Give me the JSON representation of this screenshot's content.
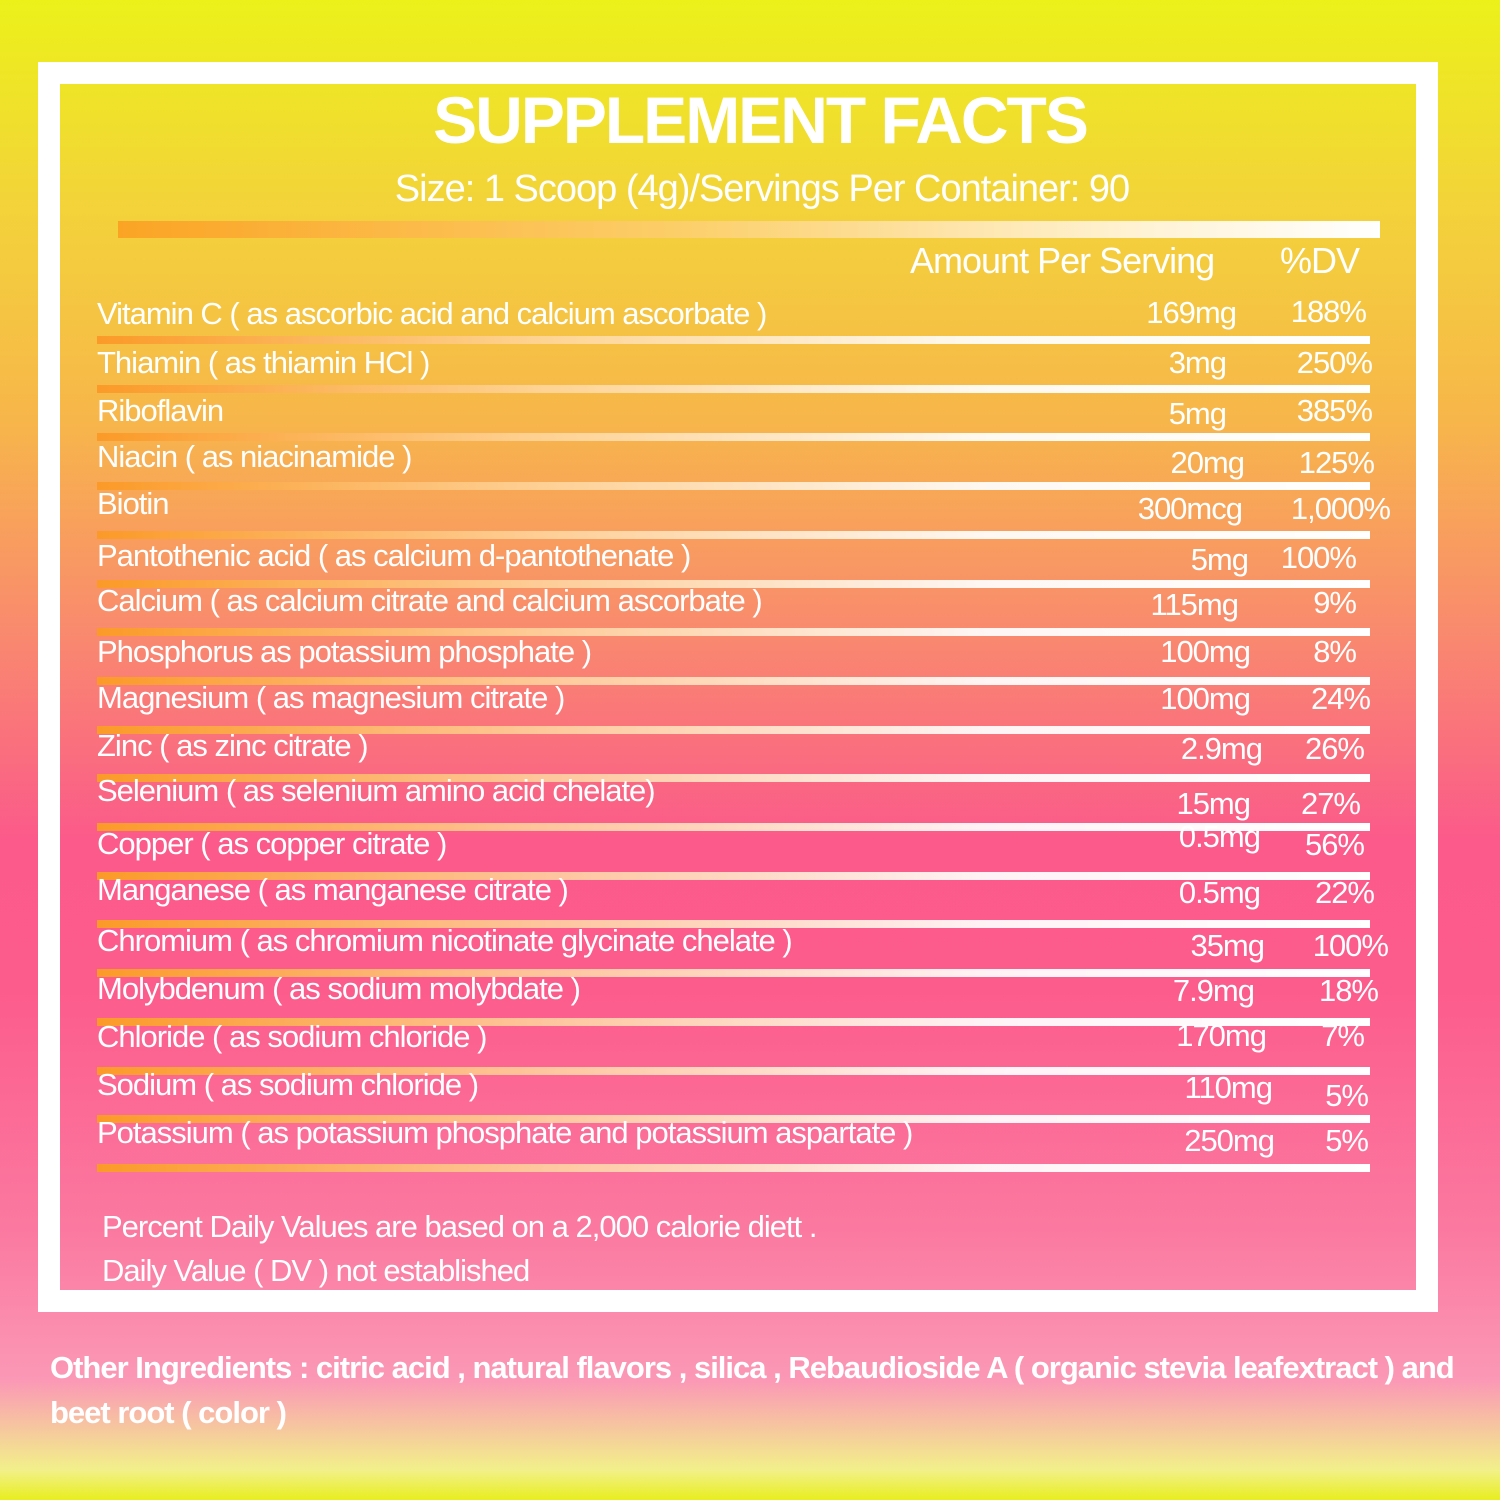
{
  "title": "SUPPLEMENT FACTS",
  "serving_size": "Size: 1 Scoop (4g)/Servings Per Container: 90",
  "column_headers": {
    "amount": "Amount Per Serving",
    "dv": "%DV"
  },
  "nutrients": [
    {
      "name": "Vitamin C ( as ascorbic acid and calcium ascorbate )",
      "amount": "169mg",
      "dv": "188%"
    },
    {
      "name": "Thiamin ( as thiamin HCl )",
      "amount": "3mg",
      "dv": "250%"
    },
    {
      "name": "Riboflavin",
      "amount": "5mg",
      "dv": "385%"
    },
    {
      "name": "Niacin ( as niacinamide )",
      "amount": "20mg",
      "dv": "125%"
    },
    {
      "name": "Biotin",
      "amount": "300mcg",
      "dv": "1,000%"
    },
    {
      "name": "Pantothenic acid ( as calcium d-pantothenate )",
      "amount": "5mg",
      "dv": "100%"
    },
    {
      "name": "Calcium ( as calcium citrate and calcium ascorbate )",
      "amount": "115mg",
      "dv": "9%"
    },
    {
      "name": "Phosphorus as potassium phosphate )",
      "amount": "100mg",
      "dv": "8%"
    },
    {
      "name": "Magnesium ( as magnesium citrate )",
      "amount": "100mg",
      "dv": "24%"
    },
    {
      "name": "Zinc ( as zinc citrate )",
      "amount": "2.9mg",
      "dv": "26%"
    },
    {
      "name": "Selenium ( as selenium amino acid chelate)",
      "amount": "15mg",
      "dv": "27%"
    },
    {
      "name": "Copper ( as copper citrate )",
      "amount": "0.5mg",
      "dv": "56%"
    },
    {
      "name": "Manganese ( as manganese citrate )",
      "amount": "0.5mg",
      "dv": "22%"
    },
    {
      "name": "Chromium ( as chromium nicotinate glycinate chelate )",
      "amount": "35mg",
      "dv": "100%"
    },
    {
      "name": "Molybdenum ( as sodium molybdate )",
      "amount": "7.9mg",
      "dv": "18%"
    },
    {
      "name": "Chloride ( as sodium chloride )",
      "amount": "170mg",
      "dv": "7%"
    },
    {
      "name": "Sodium ( as sodium chloride )",
      "amount": "110mg",
      "dv": "5%"
    },
    {
      "name": "Potassium ( as potassium phosphate and potassium aspartate )",
      "amount": "250mg",
      "dv": "5%"
    }
  ],
  "footnote_line1": "Percent Daily Values are based on a 2,000 calorie diett .",
  "footnote_line2": "Daily Value ( DV ) not established",
  "other_ingredients": "Other Ingredients : citric acid , natural flavors , silica , Rebaudioside A ( organic stevia leafextract ) and beet root ( color )"
}
